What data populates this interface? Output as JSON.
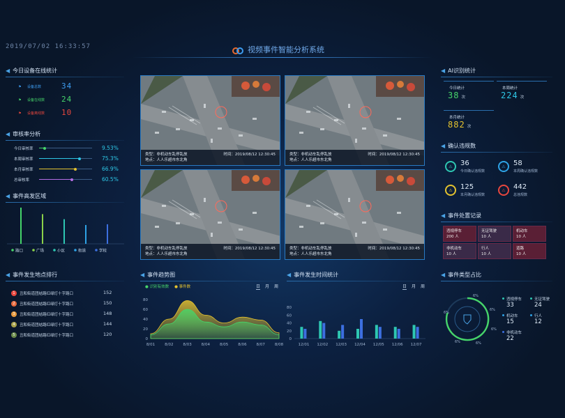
{
  "header": {
    "datetime": "2019/07/02 16:33:57",
    "title": "视频事件智能分析系统"
  },
  "online": {
    "title": "今日设备在线统计",
    "items": [
      {
        "label": "设备总数",
        "value": "34",
        "color": "#3d9cf0"
      },
      {
        "label": "设备在线数",
        "value": "24",
        "color": "#46d46a"
      },
      {
        "label": "设备离线数",
        "value": "10",
        "color": "#e8473e"
      }
    ]
  },
  "audit": {
    "title": "审核率分析",
    "rows": [
      {
        "label": "今日审核率",
        "value": "9.53%",
        "ratio": 0.0953,
        "color": "#46d46a"
      },
      {
        "label": "本周审核率",
        "value": "75.3%",
        "ratio": 0.753,
        "color": "#2ec7e6"
      },
      {
        "label": "本月审核率",
        "value": "66.9%",
        "ratio": 0.669,
        "color": "#e5c32f"
      },
      {
        "label": "总审核率",
        "value": "60.5%",
        "ratio": 0.605,
        "color": "#b66ee6"
      }
    ]
  },
  "area": {
    "title": "事件高发区域",
    "categories": [
      {
        "name": "路口",
        "color": "#46d46a"
      },
      {
        "name": "广场",
        "color": "#8ad14a"
      },
      {
        "name": "小区",
        "color": "#2ec7b2"
      },
      {
        "name": "街道",
        "color": "#2ea3e6"
      },
      {
        "name": "学校",
        "color": "#3c6fe0"
      }
    ],
    "chart_data": {
      "type": "bar",
      "categories": [
        "路口",
        "广场",
        "小区",
        "街道",
        "学校"
      ],
      "values": [
        100,
        82,
        68,
        52,
        54
      ],
      "ylim": [
        0,
        100
      ]
    }
  },
  "ranking": {
    "title": "事件发生地点排行",
    "items": [
      {
        "rank": "1",
        "name": "丑和街道团结路红绿灯十字路口",
        "value": "152",
        "color": "#e8473e"
      },
      {
        "rank": "2",
        "name": "丑和街道团结路红绿灯十字路口",
        "value": "150",
        "color": "#e86a3e"
      },
      {
        "rank": "3",
        "name": "丑和街道团结路红绿灯十字路口",
        "value": "148",
        "color": "#e89a3e"
      },
      {
        "rank": "4",
        "name": "丑和街道团结路红绿灯十字路口",
        "value": "144",
        "color": "#a8a24a"
      },
      {
        "rank": "5",
        "name": "丑和街道团结路红绿灯十字路口",
        "value": "120",
        "color": "#6a8a4a"
      }
    ]
  },
  "videos": [
    {
      "type": "类型：非机动车乱停乱放",
      "time": "时间：2019/08/12 12:30:45",
      "place": "地点：人人乐超市东北角"
    },
    {
      "type": "类型：非机动车乱停乱放",
      "time": "时间：2019/08/12 12:30:45",
      "place": "地点：人人乐超市东北角"
    },
    {
      "type": "类型：非机动车乱停乱放",
      "time": "时间：2019/08/12 12:30:45",
      "place": "地点：人人乐超市东北角"
    },
    {
      "type": "类型：非机动车乱停乱放",
      "time": "时间：2019/08/12 12:30:45",
      "place": "地点：人人乐超市东北角"
    }
  ],
  "trend": {
    "title": "事件趋势图",
    "legend": [
      "识别有效数",
      "事件数"
    ],
    "tabs": [
      "日",
      "月",
      "周"
    ],
    "chart_data": {
      "type": "area",
      "x": [
        "8/01",
        "8/02",
        "8/03",
        "8/04",
        "8/05",
        "8/06",
        "8/07",
        "8/08"
      ],
      "yticks": [
        0,
        20,
        40,
        60,
        80
      ],
      "ylim": [
        0,
        80
      ],
      "series": [
        {
          "name": "识别有效数",
          "color": "#46d46a",
          "values": [
            8,
            30,
            60,
            34,
            24,
            34,
            28,
            8
          ]
        },
        {
          "name": "事件数",
          "color": "#e5c32f",
          "values": [
            10,
            40,
            78,
            48,
            32,
            44,
            38,
            12
          ]
        }
      ]
    }
  },
  "timeStats": {
    "title": "事件发生时间统计",
    "tabs": [
      "日",
      "月",
      "周"
    ],
    "chart_data": {
      "type": "bar",
      "x": [
        "12/01",
        "12/02",
        "12/03",
        "12/04",
        "12/05",
        "12/06",
        "12/07"
      ],
      "yticks": [
        0,
        20,
        40,
        60,
        80
      ],
      "ylim": [
        0,
        100
      ],
      "series": [
        {
          "color": "#2ec7b2",
          "values": [
            30,
            45,
            20,
            25,
            35,
            30,
            35
          ]
        },
        {
          "color": "#3c6fe0",
          "values": [
            25,
            40,
            35,
            50,
            30,
            25,
            30
          ]
        }
      ]
    }
  },
  "ai": {
    "title": "AI识别统计",
    "today": {
      "label": "今日统计",
      "value": "38",
      "unit": "次"
    },
    "week": {
      "label": "本周统计",
      "value": "224",
      "unit": "次"
    },
    "month": {
      "label": "本月统计",
      "value": "882",
      "unit": "次"
    }
  },
  "confirm": {
    "title": "确认违规数",
    "items": [
      {
        "value": "36",
        "label": "今日确认违规数",
        "color": "#2ec7b2"
      },
      {
        "value": "58",
        "label": "本周确认违规数",
        "color": "#2ea3e6"
      },
      {
        "value": "125",
        "label": "本月确认违规数",
        "color": "#e5c32f"
      },
      {
        "value": "442",
        "label": "总违规数",
        "color": "#e8473e"
      }
    ]
  },
  "records": {
    "title": "事件处置记录",
    "cells": [
      {
        "name": "违规停车",
        "count": "200 人"
      },
      {
        "name": "无证驾驶",
        "count": "10 人"
      },
      {
        "name": "机动车",
        "count": "10 人"
      },
      {
        "name": "非机动车",
        "count": "10 人"
      },
      {
        "name": "行人",
        "count": "10 人"
      },
      {
        "name": "道路",
        "count": "10 人"
      }
    ]
  },
  "types": {
    "title": "事件类型占比",
    "ring_labels": [
      "6%",
      "6%",
      "6%",
      "6%",
      "6%",
      "6%"
    ],
    "items": [
      {
        "name": "违规停车",
        "value": "33"
      },
      {
        "name": "无证驾驶",
        "value": "24"
      },
      {
        "name": "机动车",
        "value": "15"
      },
      {
        "name": "行人",
        "value": "12"
      },
      {
        "name": "非机动车",
        "value": "22"
      }
    ]
  }
}
